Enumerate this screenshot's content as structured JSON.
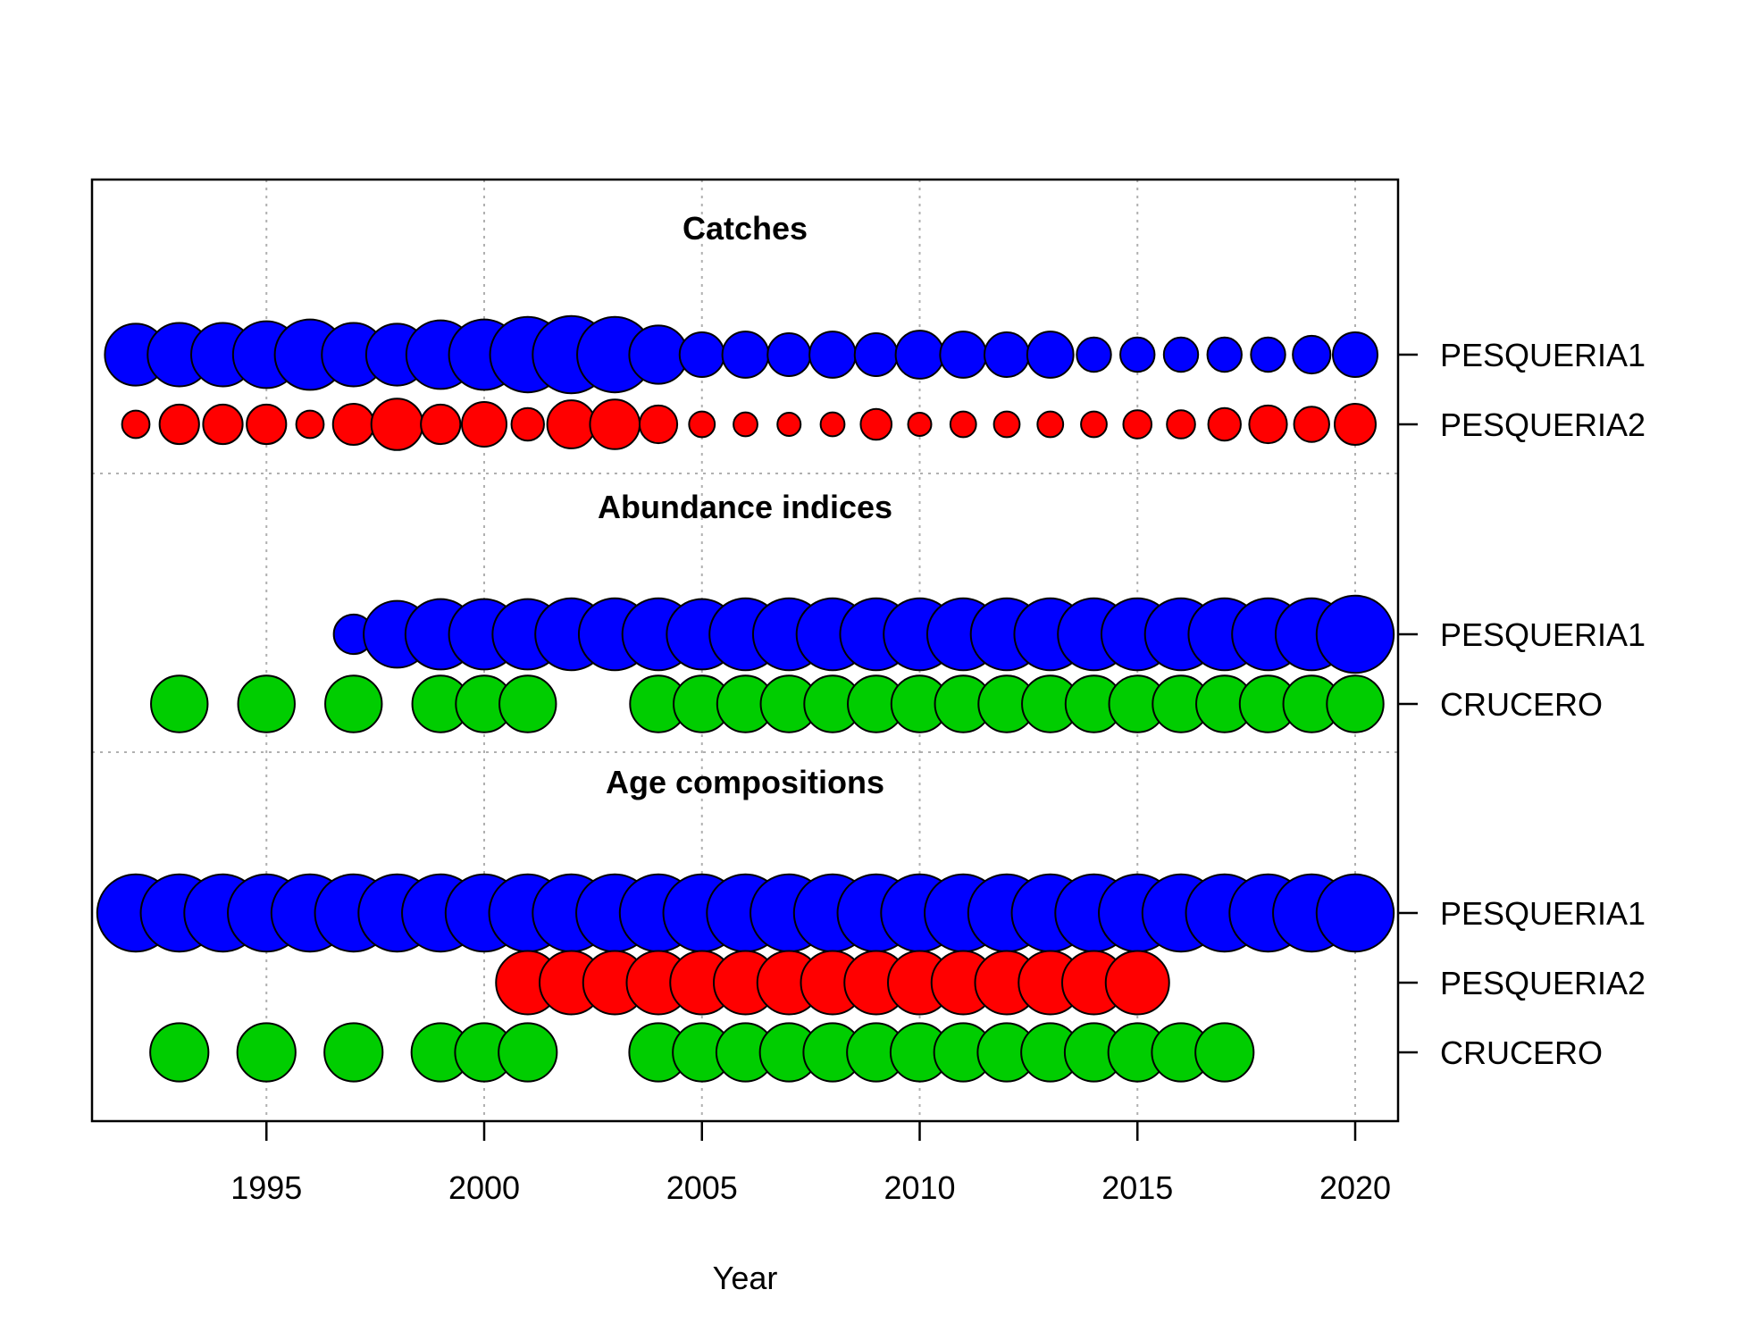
{
  "chart_data": {
    "type": "scatter",
    "xlabel": "Year",
    "xlim": [
      1991,
      2021
    ],
    "xticks": [
      1995,
      2000,
      2005,
      2010,
      2015,
      2020
    ],
    "grid": true,
    "colors": {
      "PESQUERIA1": "#0000FF",
      "PESQUERIA2": "#FF0000",
      "CRUCERO": "#00CD00"
    },
    "sections": [
      {
        "title": "Catches",
        "rows": [
          {
            "name": "PESQUERIA1",
            "years": [
              1992,
              1993,
              1994,
              1995,
              1996,
              1997,
              1998,
              1999,
              2000,
              2001,
              2002,
              2003,
              2004,
              2005,
              2006,
              2007,
              2008,
              2009,
              2010,
              2011,
              2012,
              2013,
              2014,
              2015,
              2016,
              2017,
              2018,
              2019,
              2020
            ],
            "values": [
              0.72,
              0.74,
              0.74,
              0.78,
              0.82,
              0.74,
              0.72,
              0.8,
              0.82,
              0.88,
              0.9,
              0.88,
              0.68,
              0.52,
              0.54,
              0.5,
              0.54,
              0.5,
              0.56,
              0.54,
              0.52,
              0.54,
              0.4,
              0.4,
              0.4,
              0.4,
              0.4,
              0.44,
              0.52
            ]
          },
          {
            "name": "PESQUERIA2",
            "years": [
              1992,
              1993,
              1994,
              1995,
              1996,
              1997,
              1998,
              1999,
              2000,
              2001,
              2002,
              2003,
              2004,
              2005,
              2006,
              2007,
              2008,
              2009,
              2010,
              2011,
              2012,
              2013,
              2014,
              2015,
              2016,
              2017,
              2018,
              2019,
              2020
            ],
            "values": [
              0.32,
              0.46,
              0.46,
              0.46,
              0.32,
              0.48,
              0.6,
              0.46,
              0.52,
              0.38,
              0.56,
              0.58,
              0.44,
              0.3,
              0.28,
              0.27,
              0.28,
              0.36,
              0.27,
              0.3,
              0.3,
              0.3,
              0.3,
              0.33,
              0.33,
              0.38,
              0.44,
              0.41,
              0.48
            ]
          }
        ]
      },
      {
        "title": "Abundance indices",
        "rows": [
          {
            "name": "PESQUERIA1",
            "years": [
              1997,
              1998,
              1999,
              2000,
              2001,
              2002,
              2003,
              2004,
              2005,
              2006,
              2007,
              2008,
              2009,
              2010,
              2011,
              2012,
              2013,
              2014,
              2015,
              2016,
              2017,
              2018,
              2019,
              2020
            ],
            "values": [
              0.46,
              0.78,
              0.82,
              0.82,
              0.82,
              0.84,
              0.84,
              0.84,
              0.82,
              0.84,
              0.84,
              0.84,
              0.84,
              0.84,
              0.84,
              0.84,
              0.84,
              0.84,
              0.84,
              0.84,
              0.84,
              0.84,
              0.84,
              0.9
            ]
          },
          {
            "name": "CRUCERO",
            "years": [
              1993,
              1995,
              1997,
              1999,
              2000,
              2001,
              2004,
              2005,
              2006,
              2007,
              2008,
              2009,
              2010,
              2011,
              2012,
              2013,
              2014,
              2015,
              2016,
              2017,
              2018,
              2019,
              2020
            ],
            "values": [
              0.66,
              0.66,
              0.66,
              0.66,
              0.66,
              0.66,
              0.66,
              0.66,
              0.66,
              0.66,
              0.66,
              0.66,
              0.66,
              0.66,
              0.66,
              0.66,
              0.66,
              0.66,
              0.66,
              0.66,
              0.66,
              0.66,
              0.66
            ]
          }
        ]
      },
      {
        "title": "Age compositions",
        "rows": [
          {
            "name": "PESQUERIA1",
            "years": [
              1992,
              1993,
              1994,
              1995,
              1996,
              1997,
              1998,
              1999,
              2000,
              2001,
              2002,
              2003,
              2004,
              2005,
              2006,
              2007,
              2008,
              2009,
              2010,
              2011,
              2012,
              2013,
              2014,
              2015,
              2016,
              2017,
              2018,
              2019,
              2020
            ],
            "values": [
              0.9,
              0.9,
              0.9,
              0.9,
              0.9,
              0.9,
              0.9,
              0.9,
              0.9,
              0.9,
              0.9,
              0.9,
              0.9,
              0.9,
              0.9,
              0.9,
              0.9,
              0.9,
              0.9,
              0.9,
              0.9,
              0.9,
              0.9,
              0.9,
              0.9,
              0.9,
              0.9,
              0.9,
              0.9
            ]
          },
          {
            "name": "PESQUERIA2",
            "years": [
              2001,
              2002,
              2003,
              2004,
              2005,
              2006,
              2007,
              2008,
              2009,
              2010,
              2011,
              2012,
              2013,
              2014,
              2015
            ],
            "values": [
              0.74,
              0.74,
              0.74,
              0.74,
              0.74,
              0.74,
              0.74,
              0.74,
              0.74,
              0.74,
              0.74,
              0.74,
              0.74,
              0.74,
              0.74
            ]
          },
          {
            "name": "CRUCERO",
            "years": [
              1993,
              1995,
              1997,
              1999,
              2000,
              2001,
              2004,
              2005,
              2006,
              2007,
              2008,
              2009,
              2010,
              2011,
              2012,
              2013,
              2014,
              2015,
              2016,
              2017
            ],
            "values": [
              0.68,
              0.68,
              0.68,
              0.68,
              0.68,
              0.68,
              0.68,
              0.68,
              0.68,
              0.68,
              0.68,
              0.68,
              0.68,
              0.68,
              0.68,
              0.68,
              0.68,
              0.68,
              0.68,
              0.68
            ]
          }
        ]
      }
    ]
  }
}
